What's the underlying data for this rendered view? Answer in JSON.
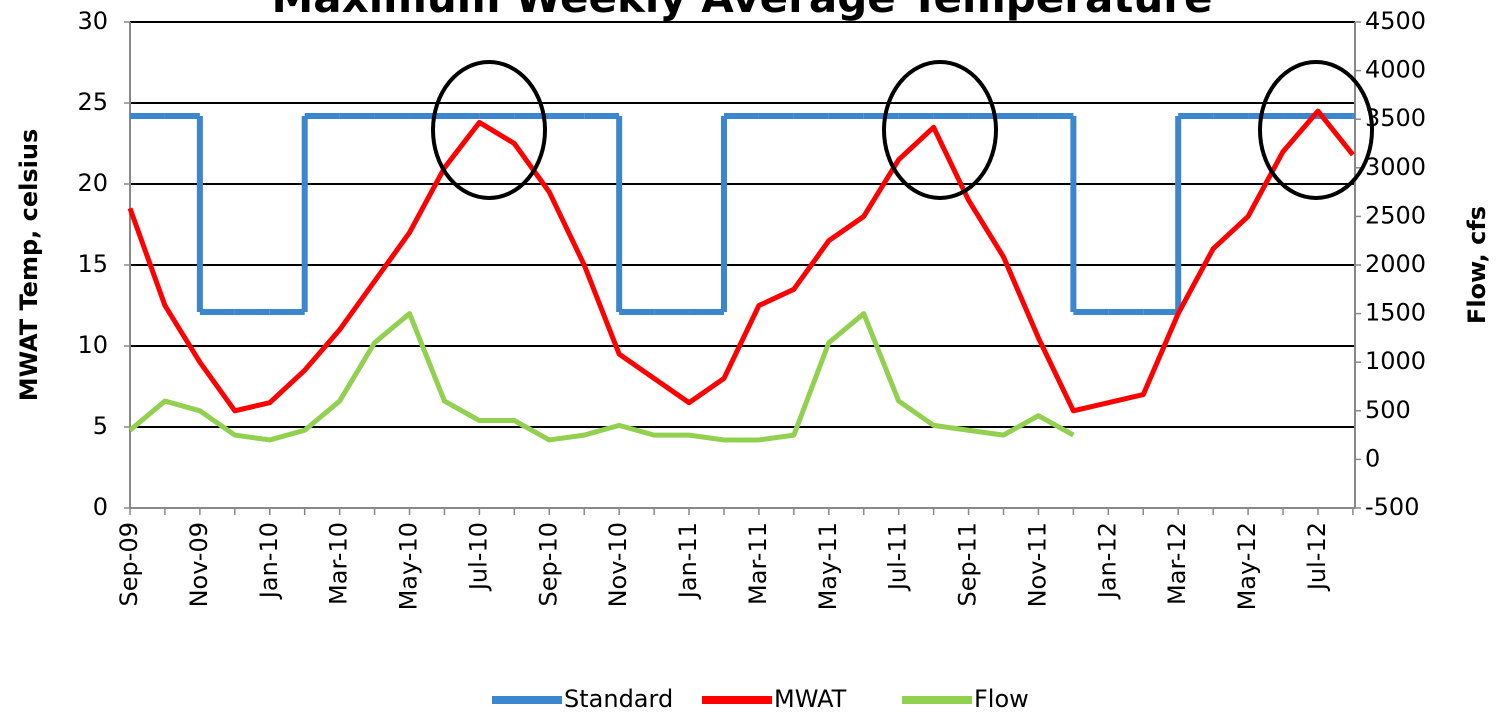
{
  "chart_data": {
    "type": "line",
    "title": "Maximum Weekly Average Temperature",
    "ylabel": "MWAT Temp, celsius",
    "y2label": "Flow, cfs",
    "x": [
      "Sep-09",
      null,
      "Nov-09",
      null,
      "Jan-10",
      null,
      "Mar-10",
      null,
      "May-10",
      null,
      "Jul-10",
      null,
      "Sep-10",
      null,
      "Nov-10",
      null,
      "Jan-11",
      null,
      "Mar-11",
      null,
      "May-11",
      null,
      "Jul-11",
      null,
      "Sep-11",
      null,
      "Nov-11",
      null,
      "Jan-12",
      null,
      "Mar-12",
      null,
      "May-12",
      null,
      "Jul-12",
      null
    ],
    "series": [
      {
        "name": "Standard",
        "color": "#3b86cf",
        "step": "after",
        "values": [
          24.2,
          24.2,
          12.1,
          12.1,
          12.1,
          24.2,
          24.2,
          24.2,
          24.2,
          24.2,
          24.2,
          24.2,
          24.2,
          24.2,
          12.1,
          12.1,
          12.1,
          24.2,
          24.2,
          24.2,
          24.2,
          24.2,
          24.2,
          24.2,
          24.2,
          24.2,
          24.2,
          12.1,
          12.1,
          12.1,
          24.2,
          24.2,
          24.2,
          24.2,
          24.2,
          24.2
        ]
      },
      {
        "name": "MWAT",
        "color": "#ff0000",
        "values": [
          18.5,
          12.5,
          9,
          6,
          6.5,
          8.5,
          11,
          14,
          17,
          21,
          23.8,
          22.5,
          19.5,
          15,
          9.5,
          8,
          6.5,
          8,
          12.5,
          13.5,
          16.5,
          18,
          21.5,
          23.5,
          19,
          15.5,
          10.5,
          6,
          6.5,
          7,
          12,
          16,
          18,
          22,
          24.5,
          21.8
        ]
      },
      {
        "name": "Flow",
        "color": "#92d050",
        "axis": "y2",
        "values": [
          300,
          600,
          500,
          250,
          200,
          300,
          600,
          1200,
          1500,
          600,
          400,
          400,
          200,
          250,
          350,
          250,
          250,
          200,
          200,
          250,
          1200,
          1500,
          600,
          350,
          300,
          250,
          450,
          250,
          null,
          null,
          null,
          null,
          null,
          null,
          null,
          null
        ]
      }
    ],
    "ylim": [
      0,
      30
    ],
    "yticks": [
      0,
      5,
      10,
      15,
      20,
      25,
      30
    ],
    "y2lim": [
      -500,
      4500
    ],
    "y2ticks": [
      -500,
      0,
      500,
      1000,
      1500,
      2000,
      2500,
      3000,
      3500,
      4000,
      4500
    ],
    "grid": true,
    "legend": "bottom"
  }
}
